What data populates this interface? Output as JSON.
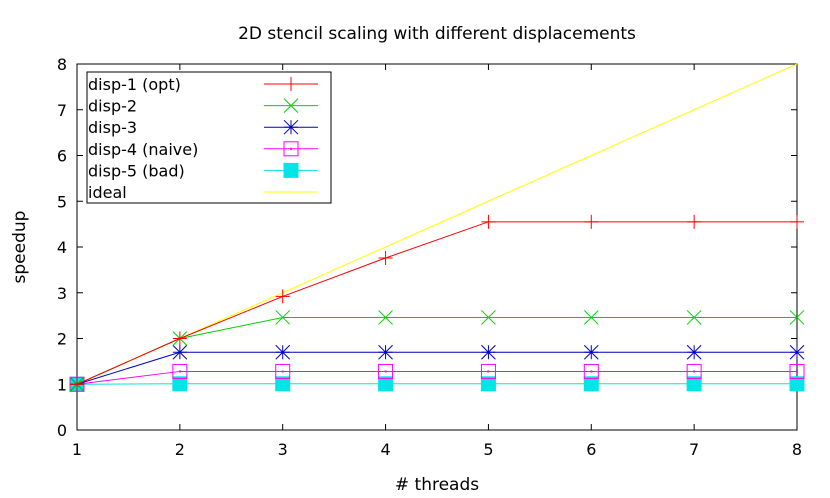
{
  "chart_data": {
    "type": "line",
    "title": "2D stencil scaling with different displacements",
    "xlabel": "# threads",
    "ylabel": "speedup",
    "xlim": [
      1,
      8
    ],
    "ylim": [
      0,
      8
    ],
    "x_ticks": [
      "1",
      "2",
      "3",
      "4",
      "5",
      "6",
      "7",
      "8"
    ],
    "y_ticks": [
      "0",
      "1",
      "2",
      "3",
      "4",
      "5",
      "6",
      "7",
      "8"
    ],
    "legend_position": "top-left",
    "x": [
      1,
      2,
      3,
      4,
      5,
      6,
      7,
      8
    ],
    "series": [
      {
        "name": "disp-1 (opt)",
        "color": "#ff0000",
        "marker": "plus",
        "values": [
          1,
          2,
          2.92,
          3.76,
          4.55,
          4.55,
          4.55,
          4.55
        ]
      },
      {
        "name": "disp-2",
        "color": "#00d000",
        "marker": "cross",
        "values": [
          1,
          2,
          2.46,
          2.46,
          2.46,
          2.46,
          2.46,
          2.46
        ]
      },
      {
        "name": "disp-3",
        "color": "#0000c0",
        "marker": "star",
        "values": [
          1,
          1.7,
          1.7,
          1.7,
          1.7,
          1.7,
          1.7,
          1.7
        ]
      },
      {
        "name": "disp-4 (naive)",
        "color": "#ff00ff",
        "marker": "square-dot",
        "values": [
          1,
          1.28,
          1.28,
          1.28,
          1.28,
          1.28,
          1.28,
          1.28
        ]
      },
      {
        "name": "disp-5 (bad)",
        "color": "#00e5e5",
        "marker": "filled-square",
        "values": [
          1,
          1.01,
          1.01,
          1.01,
          1.01,
          1.01,
          1.01,
          1.01
        ]
      },
      {
        "name": "ideal",
        "color": "#ffff00",
        "marker": "none",
        "values": [
          1,
          2,
          3,
          4,
          5,
          6,
          7,
          8
        ]
      }
    ]
  }
}
